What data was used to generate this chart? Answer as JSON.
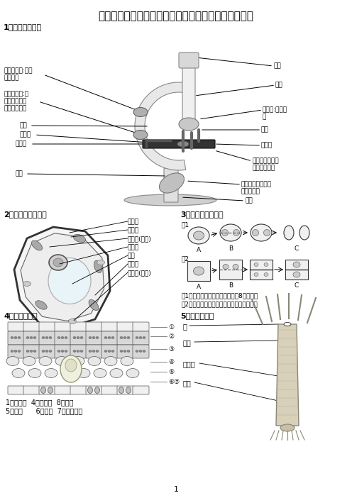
{
  "title": "济南版初中生物学业水平考试必背图形汇总（全四册）",
  "bg_color": "#ffffff",
  "section1_label": "1、显微镜结构图",
  "section2_label": "2、植物细胞结构图",
  "section3_label": "3、动物细胞分裂图",
  "section4_label": "4、叶片结构图",
  "section5_label": "5、水螅结构图",
  "leaf_labels_line1": "1、上表皮  4、下表皮  8、叶肉",
  "leaf_labels_line2": "5、叶脉      6、气孔  7、保卫细胞",
  "fig1_caption": "图1：动物细胞分裂：由外向内，8字形分裂",
  "fig2_caption": "图2：植物细胞分裂：由内向外，日字形分裂",
  "page_number": "1"
}
